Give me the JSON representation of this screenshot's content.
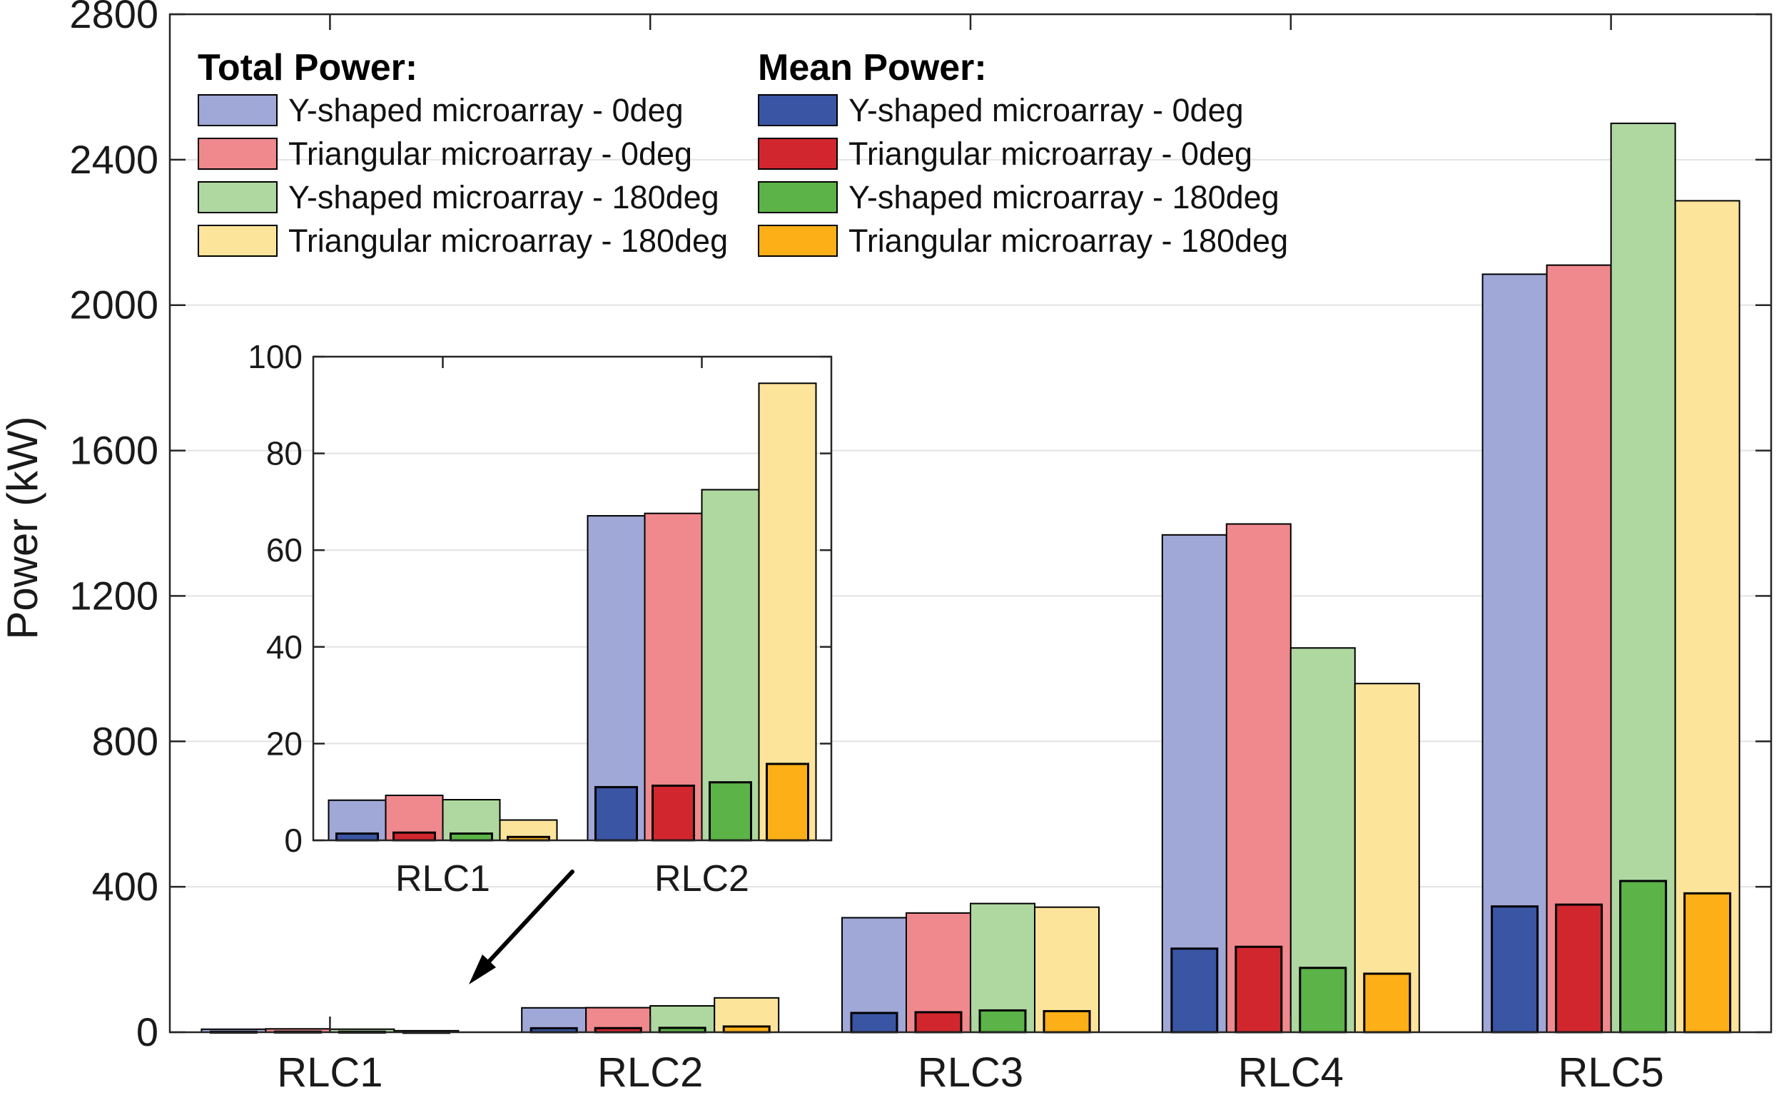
{
  "figure": {
    "background": "#ffffff",
    "axis_color": "#262626",
    "grid_color": "#e2e2e2"
  },
  "y_axis": {
    "label": "Power (kW)",
    "tick_labels": [
      "0",
      "400",
      "800",
      "1200",
      "1600",
      "2000",
      "2400",
      "2800"
    ]
  },
  "x_axis": {
    "categories": [
      "RLC1",
      "RLC2",
      "RLC3",
      "RLC4",
      "RLC5"
    ]
  },
  "legend": {
    "total": {
      "header": "Total Power:",
      "entries": [
        {
          "label": "Y-shaped microarray - 0deg",
          "color": "#9FA8D6"
        },
        {
          "label": "Triangular microarray - 0deg",
          "color": "#F0898E"
        },
        {
          "label": "Y-shaped microarray - 180deg",
          "color": "#AFD8A1"
        },
        {
          "label": "Triangular microarray - 180deg",
          "color": "#FCE49B"
        }
      ]
    },
    "mean": {
      "header": "Mean Power:",
      "entries": [
        {
          "label": "Y-shaped microarray - 0deg",
          "color": "#3A55A4"
        },
        {
          "label": "Triangular microarray - 0deg",
          "color": "#D2262E"
        },
        {
          "label": "Y-shaped microarray - 180deg",
          "color": "#5CB347"
        },
        {
          "label": "Triangular microarray - 180deg",
          "color": "#FCAF16"
        }
      ]
    }
  },
  "chart_data": {
    "type": "bar",
    "title": "",
    "xlabel": "",
    "ylabel": "Power (kW)",
    "ylim": [
      0,
      2800
    ],
    "yticks": [
      0,
      400,
      800,
      1200,
      1600,
      2000,
      2400,
      2800
    ],
    "grid": "horizontal",
    "legend_position": "top-left-two-columns",
    "categories": [
      "RLC1",
      "RLC2",
      "RLC3",
      "RLC4",
      "RLC5"
    ],
    "series": [
      {
        "group": "Total Power",
        "name": "Y-shaped microarray - 0deg",
        "color": "#9FA8D6",
        "values": [
          8.3,
          67.1,
          315,
          1368,
          2085
        ]
      },
      {
        "group": "Total Power",
        "name": "Triangular microarray - 0deg",
        "color": "#F0898E",
        "values": [
          9.3,
          67.6,
          328,
          1398,
          2110
        ]
      },
      {
        "group": "Total Power",
        "name": "Y-shaped microarray - 180deg",
        "color": "#AFD8A1",
        "values": [
          8.4,
          72.5,
          354,
          1057,
          2500
        ]
      },
      {
        "group": "Total Power",
        "name": "Triangular microarray - 180deg",
        "color": "#FCE49B",
        "values": [
          4.2,
          94.5,
          344,
          959,
          2287
        ]
      },
      {
        "group": "Mean Power",
        "name": "Y-shaped microarray - 0deg",
        "color": "#3A55A4",
        "values": [
          1.4,
          11.0,
          53,
          230,
          346
        ]
      },
      {
        "group": "Mean Power",
        "name": "Triangular microarray - 0deg",
        "color": "#D2262E",
        "values": [
          1.6,
          11.3,
          55,
          235,
          351
        ]
      },
      {
        "group": "Mean Power",
        "name": "Y-shaped microarray - 180deg",
        "color": "#5CB347",
        "values": [
          1.4,
          12.0,
          60,
          177,
          416
        ]
      },
      {
        "group": "Mean Power",
        "name": "Triangular microarray - 180deg",
        "color": "#FCAF16",
        "values": [
          0.7,
          15.8,
          58,
          161,
          382
        ]
      }
    ],
    "inset": {
      "type": "inset-zoom",
      "note": "magnified view of RLC1 and RLC2 with arrow pointing to main axis",
      "categories": [
        "RLC1",
        "RLC2"
      ],
      "ylim": [
        0,
        100
      ],
      "yticks": [
        0,
        20,
        40,
        60,
        80,
        100
      ]
    }
  }
}
